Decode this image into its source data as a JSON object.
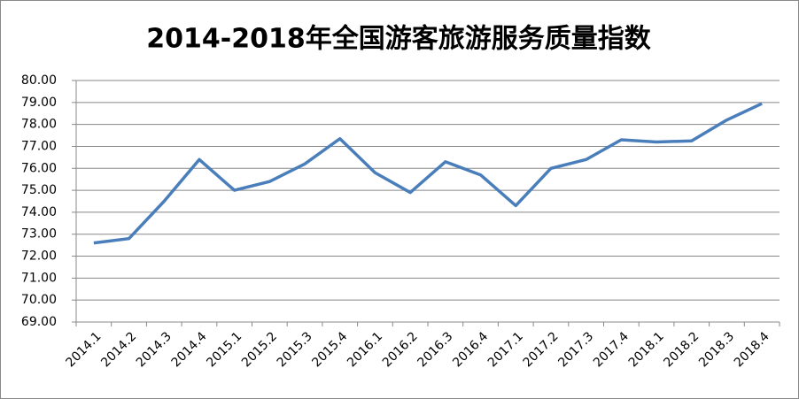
{
  "chart_data": {
    "type": "line",
    "title": "2014-2018年全国游客旅游服务质量指数",
    "categories": [
      "2014.1",
      "2014.2",
      "2014.3",
      "2014.4",
      "2015.1",
      "2015.2",
      "2015.3",
      "2015.4",
      "2016.1",
      "2016.2",
      "2016.3",
      "2016.4",
      "2017.1",
      "2017.2",
      "2017.3",
      "2017.4",
      "2018.1",
      "2018.2",
      "2018.3",
      "2018.4"
    ],
    "series": [
      {
        "color": "#4a7ebb",
        "values": [
          72.6,
          72.8,
          74.5,
          76.4,
          75.0,
          75.4,
          76.2,
          77.35,
          75.8,
          74.9,
          76.3,
          75.7,
          74.3,
          76.0,
          76.4,
          77.3,
          77.2,
          77.25,
          78.2,
          78.95
        ]
      }
    ],
    "ylim": [
      69,
      80
    ],
    "yticks": [
      {
        "value": 69,
        "label": "69.00"
      },
      {
        "value": 70,
        "label": "70.00"
      },
      {
        "value": 71,
        "label": "71.00"
      },
      {
        "value": 72,
        "label": "72.00"
      },
      {
        "value": 73,
        "label": "73.00"
      },
      {
        "value": 74,
        "label": "74.00"
      },
      {
        "value": 75,
        "label": "75.00"
      },
      {
        "value": 76,
        "label": "76.00"
      },
      {
        "value": 77,
        "label": "77.00"
      },
      {
        "value": 78,
        "label": "78.00"
      },
      {
        "value": 79,
        "label": "79.00"
      },
      {
        "value": 80,
        "label": "80.00"
      }
    ],
    "grid": true
  }
}
